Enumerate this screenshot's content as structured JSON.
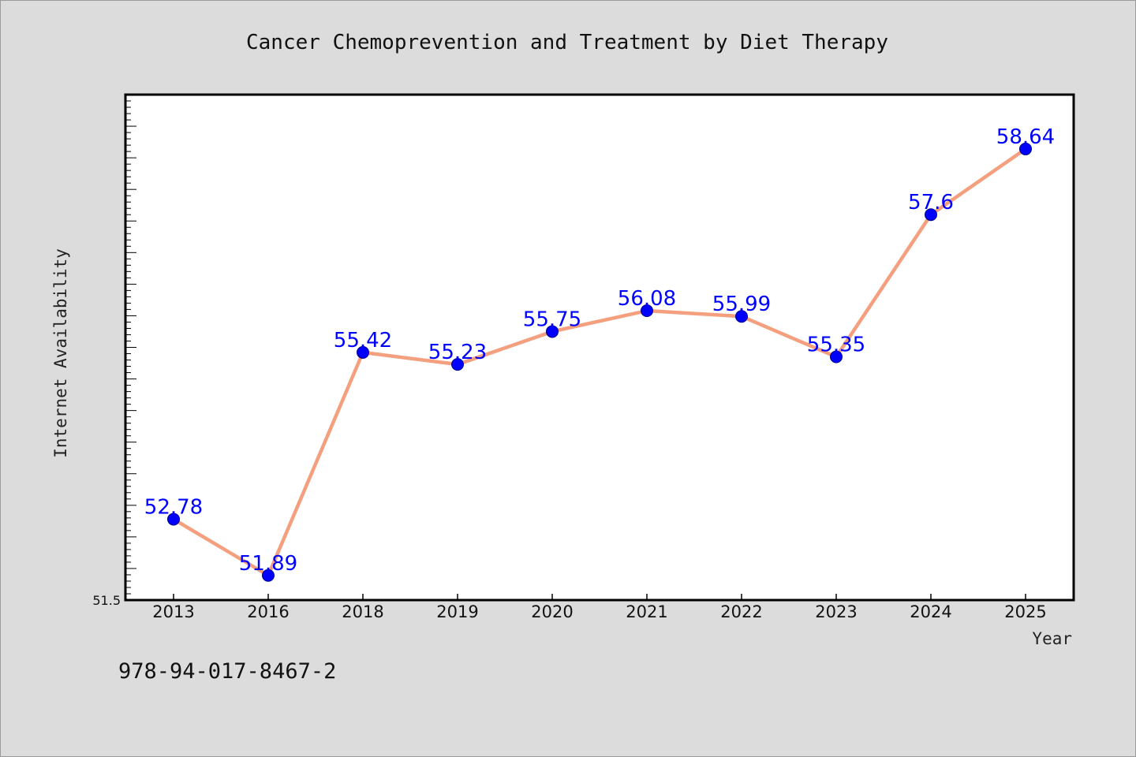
{
  "chart_data": {
    "type": "line",
    "title": "Cancer Chemoprevention and Treatment by Diet Therapy",
    "xlabel": "Year",
    "ylabel": "Internet Availability",
    "categories": [
      "2013",
      "2016",
      "2018",
      "2019",
      "2020",
      "2021",
      "2022",
      "2023",
      "2024",
      "2025"
    ],
    "values": [
      52.78,
      51.89,
      55.42,
      55.23,
      55.75,
      56.08,
      55.99,
      55.35,
      57.6,
      58.64
    ],
    "data_labels": [
      "52.78",
      "51.89",
      "55.42",
      "55.23",
      "55.75",
      "56.08",
      "55.99",
      "55.35",
      "57.6",
      "58.64"
    ],
    "ylim": [
      51.5,
      59.5
    ],
    "ytick_labels": [
      "51.5"
    ],
    "grid": false,
    "legend": "none",
    "colors": {
      "line": "#f4a07f",
      "marker": "#0000ff",
      "data_label": "#0000ff",
      "plot_background": "#ffffff",
      "page_background": "#dcdcdc"
    }
  },
  "footer": {
    "code": "978-94-017-8467-2"
  }
}
